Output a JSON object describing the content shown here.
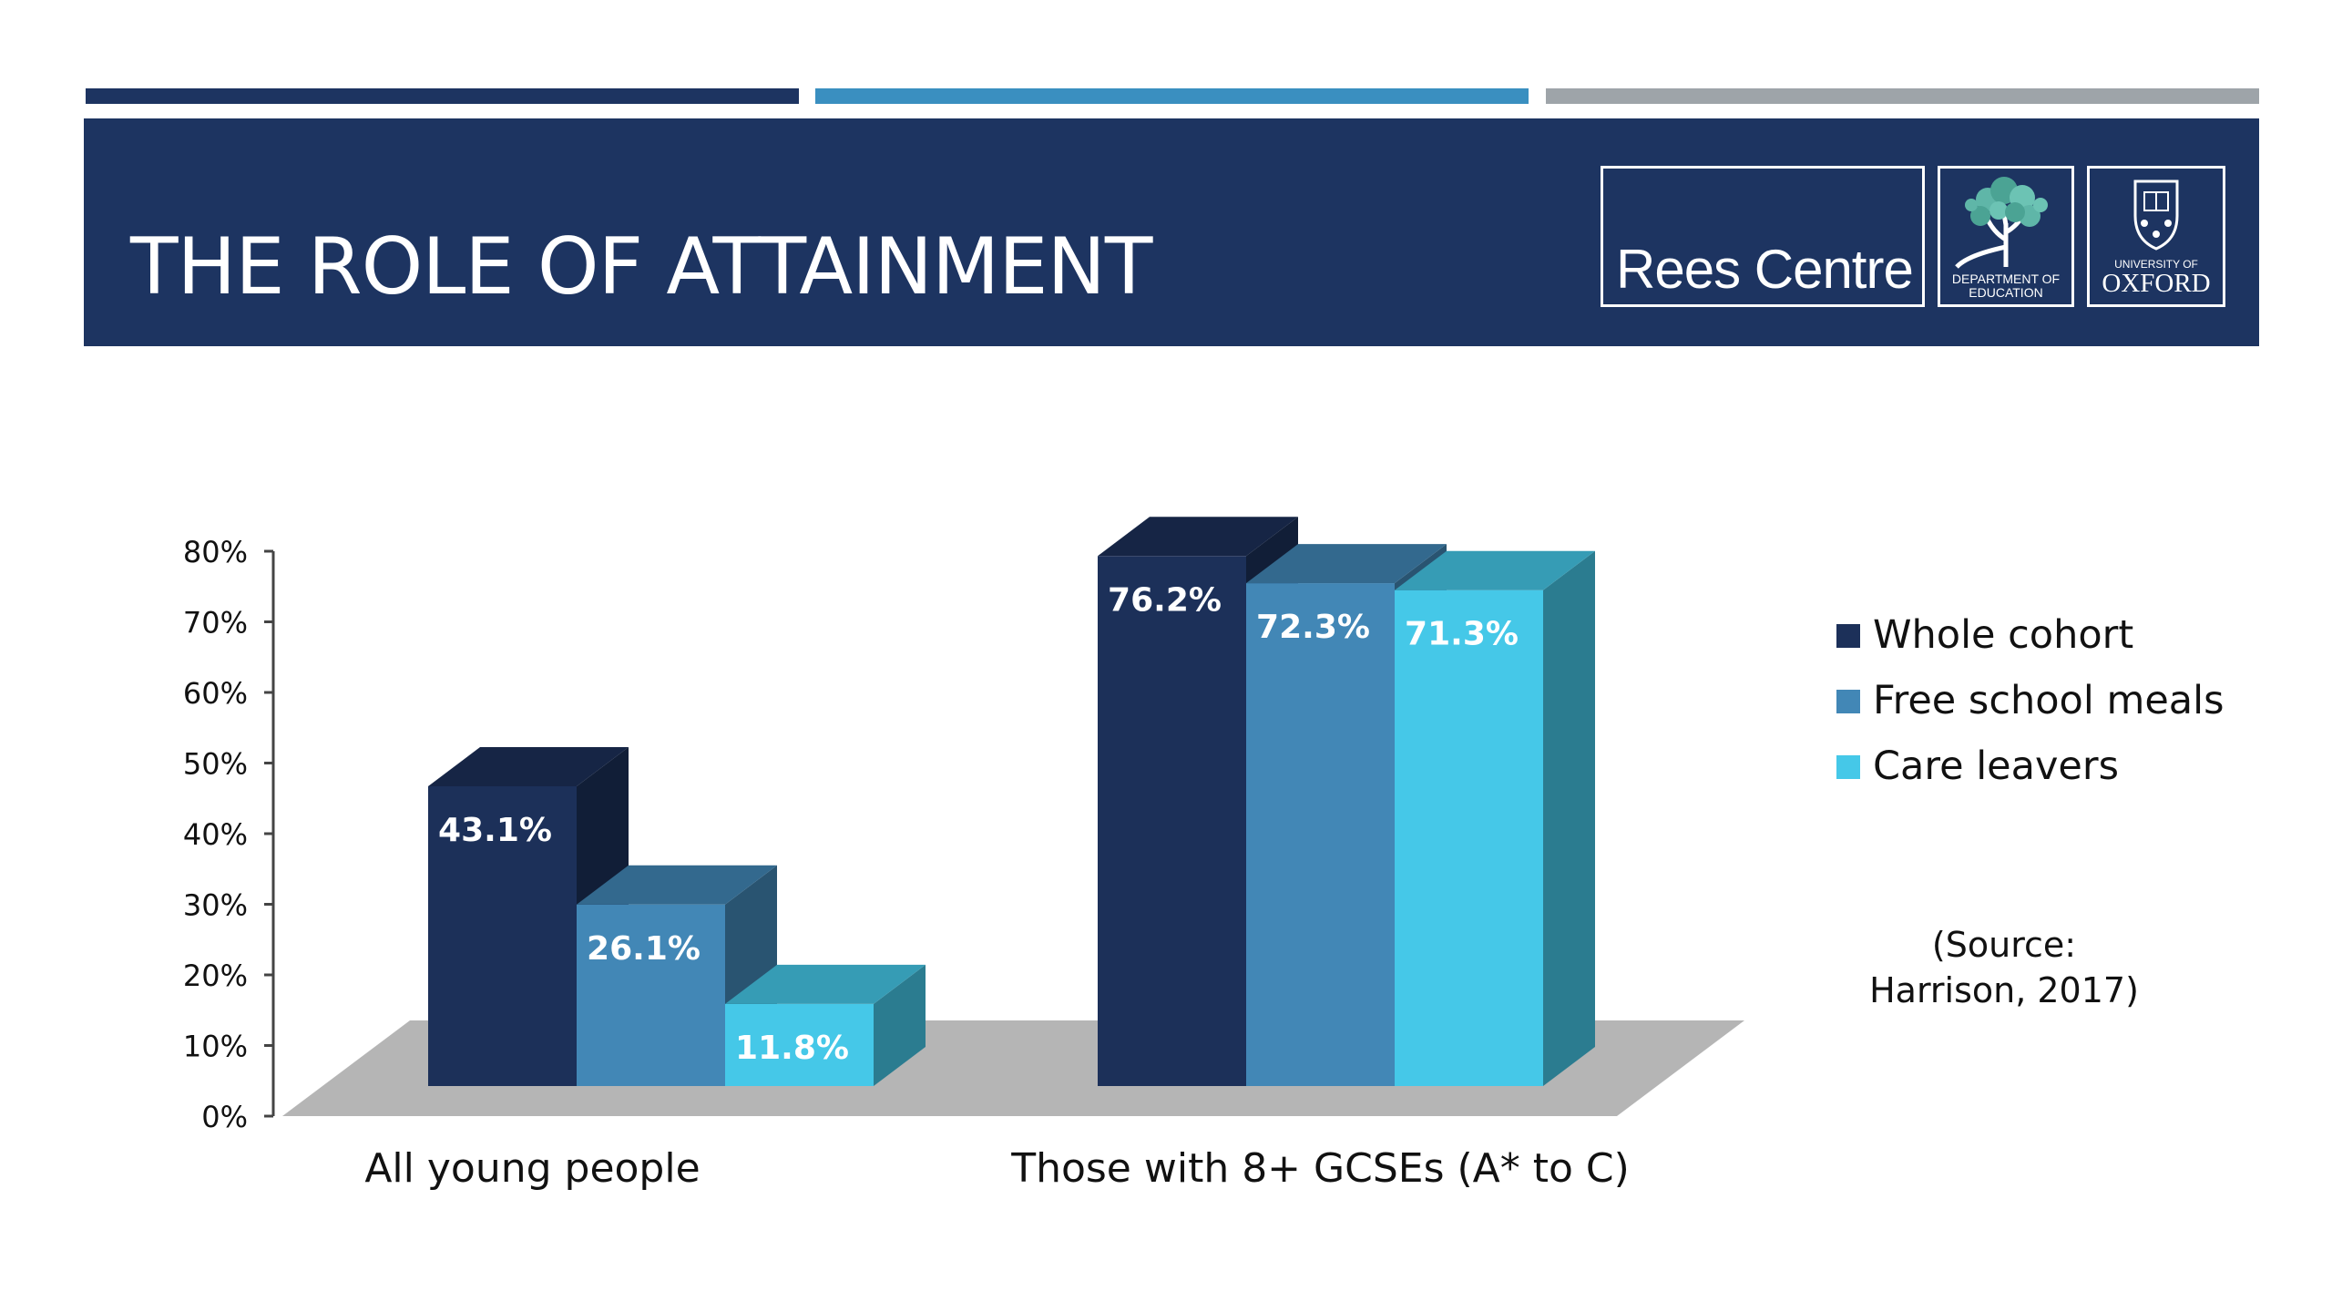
{
  "slide": {
    "title": "THE ROLE OF ATTAINMENT",
    "colors": {
      "banner": "#1d3461",
      "stripe1": "#1d3461",
      "stripe2": "#3a8fc0",
      "stripe3": "#9ea4a9"
    }
  },
  "logos": {
    "rees_centre": "Rees Centre",
    "department": "DEPARTMENT OF EDUCATION",
    "university_small": "UNIVERSITY OF",
    "university_big": "OXFORD"
  },
  "chart_data": {
    "type": "bar",
    "categories": [
      "All young people",
      "Those with 8+ GCSEs (A* to C)"
    ],
    "series": [
      {
        "name": "Whole cohort",
        "values": [
          43.1,
          76.2
        ],
        "color": "#1c3059"
      },
      {
        "name": "Free school meals",
        "values": [
          26.1,
          72.3
        ],
        "color": "#4287b6"
      },
      {
        "name": "Care leavers",
        "values": [
          11.8,
          71.3
        ],
        "color": "#45c8e8"
      }
    ],
    "data_labels": [
      [
        "43.1%",
        "76.2%"
      ],
      [
        "26.1%",
        "72.3%"
      ],
      [
        "11.8%",
        "71.3%"
      ]
    ],
    "y_ticks": [
      "0%",
      "10%",
      "20%",
      "30%",
      "40%",
      "50%",
      "60%",
      "70%",
      "80%"
    ],
    "ylim": [
      0,
      80
    ],
    "grid": false,
    "legend_position": "right",
    "style": "3d-clustered-column",
    "floor_color": "#b5b5b5"
  },
  "source_note": "(Source: Harrison, 2017)"
}
